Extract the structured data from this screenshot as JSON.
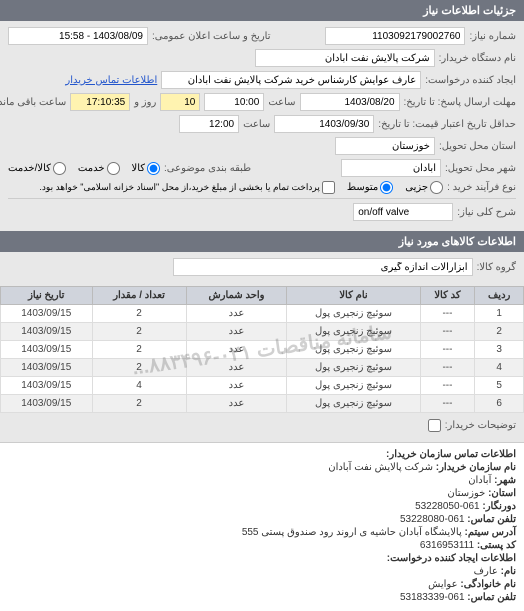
{
  "header_title": "جزئیات اطلاعات نیاز",
  "form": {
    "request_no_label": "شماره نیاز:",
    "request_no": "1103092179002760",
    "announce_label": "تاریخ و ساعت اعلان عمومی:",
    "announce_value": "1403/08/09 - 15:58",
    "buyer_device_label": "نام دستگاه خریدار:",
    "buyer_device": "شرکت پالایش نفت آبادان",
    "creator_label": "ایجاد کننده درخواست:",
    "creator": "عارف عوایش کارشناس خرید شرکت پالایش نفت آبادان",
    "contact_link": "اطلاعات تماس خریدار",
    "deadline_label": "مهلت ارسال پاسخ: تا تاریخ:",
    "deadline_date": "1403/08/20",
    "deadline_time_label": "ساعت",
    "deadline_time": "10:00",
    "remain_days": "10",
    "remain_days_label": "روز و",
    "remain_time": "17:10:35",
    "remain_time_label": "ساعت باقی مانده",
    "min_credit_label": "حداقل تاریخ اعتبار قیمت: تا تاریخ:",
    "min_credit_date": "1403/09/30",
    "min_credit_time_label": "ساعت",
    "min_credit_time": "12:00",
    "province_label": "استان محل تحویل:",
    "province": "خوزستان",
    "city_label": "شهر محل تحویل:",
    "city": "آبادان",
    "class_label": "طبقه بندی موضوعی:",
    "class_options": {
      "goods": "کالا",
      "service": "خدمت",
      "goods_service": "کالا/خدمت"
    },
    "purchase_type_label": "نوع فرآیند خرید :",
    "purchase_options": {
      "small": "جزیی",
      "medium": "متوسط",
      "note": "پرداخت تمام یا بخشی از مبلغ خرید،از محل \"اسناد خزانه اسلامی\" خواهد بود."
    },
    "desc_label": "شرح کلی نیاز:",
    "desc_value": "on/off valve"
  },
  "goods_header": "اطلاعات کالاهای مورد نیاز",
  "group_label": "گروه کالا:",
  "group_value": "ابزارآلات اندازه گیری",
  "table": {
    "columns": [
      "ردیف",
      "کد کالا",
      "نام کالا",
      "واحد شمارش",
      "تعداد / مقدار",
      "تاریخ نیاز"
    ],
    "rows": [
      [
        "1",
        "---",
        "سوئیچ زنجیری پول",
        "عدد",
        "2",
        "1403/09/15"
      ],
      [
        "2",
        "---",
        "سوئیچ زنجیری پول",
        "عدد",
        "2",
        "1403/09/15"
      ],
      [
        "3",
        "---",
        "سوئیچ زنجیری پول",
        "عدد",
        "2",
        "1403/09/15"
      ],
      [
        "4",
        "---",
        "سوئیچ زنجیری پول",
        "عدد",
        "2",
        "1403/09/15"
      ],
      [
        "5",
        "---",
        "سوئیچ زنجیری پول",
        "عدد",
        "4",
        "1403/09/15"
      ],
      [
        "6",
        "---",
        "سوئیچ زنجیری پول",
        "عدد",
        "2",
        "1403/09/15"
      ]
    ],
    "watermark": "سامانه مناقصات ۰۲۱-۸۸۳۴۹۶..."
  },
  "buyer_notes_label": "توضیحات خریدار:",
  "contact_header": "اطلاعات تماس سازمان خریدار:",
  "contact": {
    "org_label": "نام سازمان خریدار:",
    "org": "شرکت پالایش نفت آبادان",
    "city_label": "شهر:",
    "city": "آبادان",
    "province_label": "استان:",
    "province": "خوزستان",
    "fax_label": "دورنگار:",
    "fax": "061-53228050",
    "phone_label": "تلفن تماس:",
    "phone": "061-53228080",
    "addr_label": "آدرس سیتم:",
    "addr": "پالایشگاه آبادان حاشیه ی اروند رود صندوق پستی 555",
    "postal_label": "کد پستی:",
    "postal": "6316953111"
  },
  "creator_header": "اطلاعات ایجاد کننده درخواست:",
  "creator_info": {
    "name_label": "نام:",
    "name": "عارف",
    "family_label": "نام خانوادگی:",
    "family": "عوایش",
    "phone_label": "تلفن تماس:",
    "phone": "061-53183339"
  }
}
